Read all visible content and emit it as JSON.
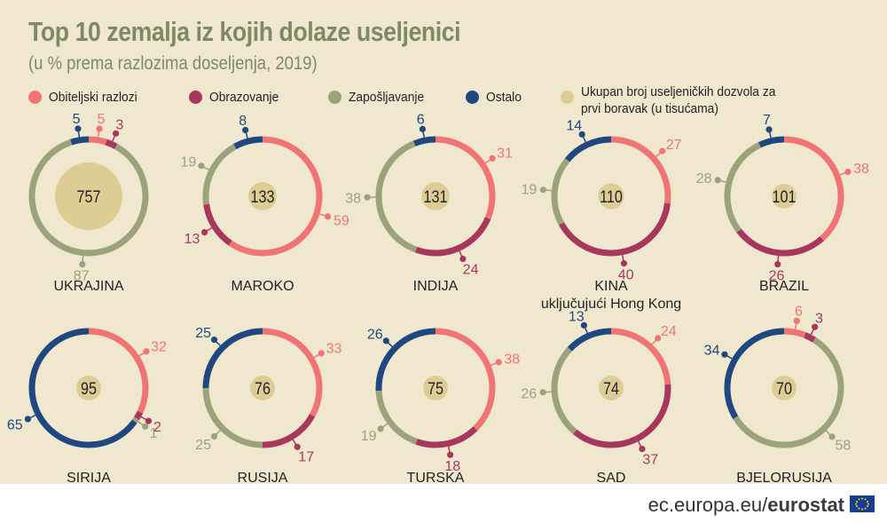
{
  "title": "Top 10 zemalja iz kojih dolaze useljenici",
  "subtitle": "(u % prema razlozima doseljenja, 2019)",
  "legend": [
    {
      "label": "Obiteljski razlozi",
      "color": "#f07473"
    },
    {
      "label": "Obrazovanje",
      "color": "#a8375e"
    },
    {
      "label": "Zapošljavanje",
      "color": "#9ca27a"
    },
    {
      "label": "Ostalo",
      "color": "#1f4780"
    },
    {
      "label": "Ukupan broj useljeničkih dozvola za prvi boravak (u tisućama)",
      "color": "#ddcc93"
    }
  ],
  "footer": {
    "site": "ec.europa.eu/",
    "brand": "eurostat"
  },
  "colors": {
    "family": "#f07473",
    "education": "#a8375e",
    "employment": "#9ca27a",
    "other": "#1f4780",
    "total": "#ddcc93",
    "background": "#efe8cf",
    "title": "#7e8a63"
  },
  "chart_data": {
    "type": "donut",
    "unit": "%",
    "series_order": [
      "Obiteljski razlozi",
      "Obrazovanje",
      "Zapošljavanje",
      "Ostalo"
    ],
    "countries": [
      {
        "name": "UKRAJINA",
        "total": 757,
        "values": [
          5,
          3,
          87,
          5
        ]
      },
      {
        "name": "MAROKO",
        "total": 133,
        "values": [
          59,
          13,
          19,
          8
        ]
      },
      {
        "name": "INDIJA",
        "total": 131,
        "values": [
          31,
          24,
          38,
          6
        ]
      },
      {
        "name": "KINA",
        "name2": "uključujući Hong Kong",
        "total": 110,
        "values": [
          27,
          40,
          19,
          14
        ]
      },
      {
        "name": "BRAZIL",
        "total": 101,
        "values": [
          38,
          26,
          28,
          7
        ]
      },
      {
        "name": "SIRIJA",
        "total": 95,
        "values": [
          32,
          2,
          1,
          65
        ]
      },
      {
        "name": "RUSIJA",
        "total": 76,
        "values": [
          33,
          17,
          25,
          25
        ]
      },
      {
        "name": "TURSKA",
        "total": 75,
        "values": [
          38,
          18,
          19,
          26
        ]
      },
      {
        "name": "SAD",
        "total": 74,
        "values": [
          24,
          37,
          26,
          13
        ]
      },
      {
        "name": "BJELORUSIJA",
        "total": 70,
        "values": [
          6,
          3,
          58,
          34
        ]
      }
    ]
  }
}
